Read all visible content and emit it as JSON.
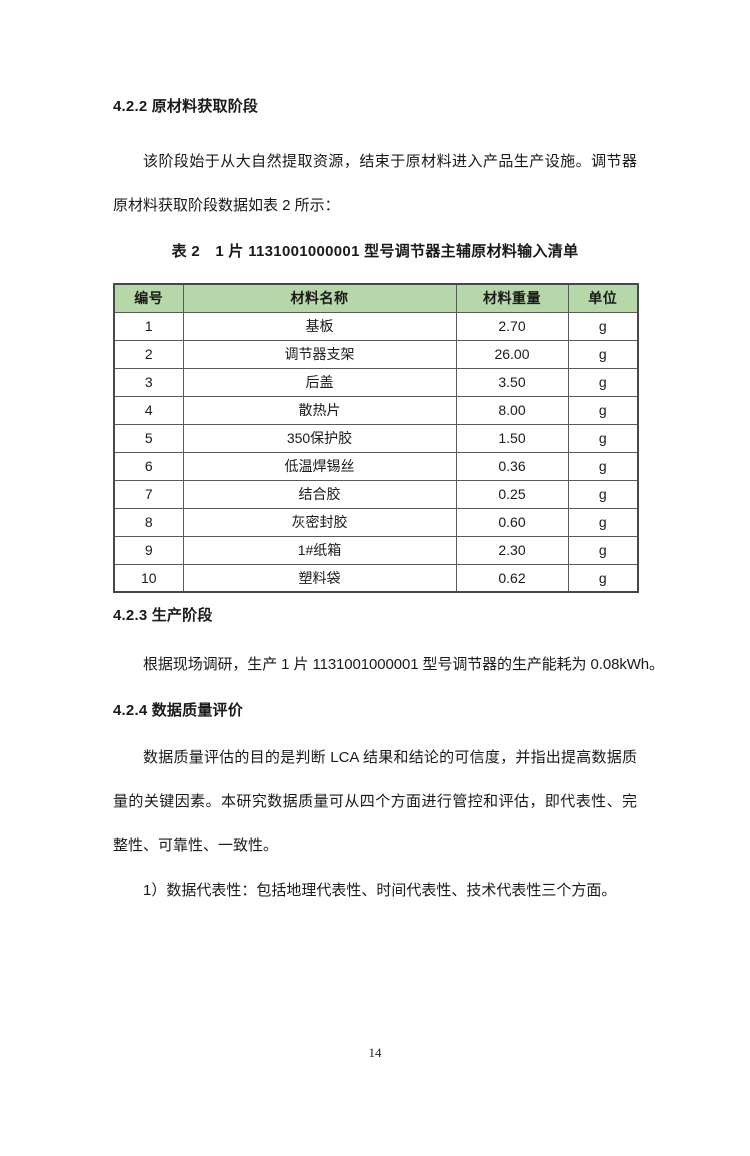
{
  "doc": {
    "section_422": {
      "heading": "4.2.2 原材料获取阶段",
      "paragraph": "该阶段始于从大自然提取资源，结束于原材料进入产品生产设施。调节器原材料获取阶段数据如表 2 所示："
    },
    "table_caption": "表 2　1 片 1131001000001 型号调节器主辅原材料输入清单",
    "materials_table": {
      "headers": [
        "编号",
        "材料名称",
        "材料重量",
        "单位"
      ],
      "rows": [
        [
          "1",
          "基板",
          "2.70",
          "g"
        ],
        [
          "2",
          "调节器支架",
          "26.00",
          "g"
        ],
        [
          "3",
          "后盖",
          "3.50",
          "g"
        ],
        [
          "4",
          "散热片",
          "8.00",
          "g"
        ],
        [
          "5",
          "350保护胶",
          "1.50",
          "g"
        ],
        [
          "6",
          "低温焊锡丝",
          "0.36",
          "g"
        ],
        [
          "7",
          "结合胶",
          "0.25",
          "g"
        ],
        [
          "8",
          "灰密封胶",
          "0.60",
          "g"
        ],
        [
          "9",
          "1#纸箱",
          "2.30",
          "g"
        ],
        [
          "10",
          "塑料袋",
          "0.62",
          "g"
        ]
      ]
    },
    "section_423": {
      "heading": "4.2.3 生产阶段",
      "paragraph": "根据现场调研，生产 1 片 1131001000001 型号调节器的生产能耗为 0.08kWh。"
    },
    "section_424": {
      "heading": "4.2.4 数据质量评价",
      "paragraph": "数据质量评估的目的是判断 LCA 结果和结论的可信度，并指出提高数据质量的关键因素。本研究数据质量可从四个方面进行管控和评估，即代表性、完整性、可靠性、一致性。",
      "list_item_1": "1）数据代表性：包括地理代表性、时间代表性、技术代表性三个方面。"
    },
    "page_number": "14"
  },
  "colors": {
    "table_header_bg": "#b6d7a8",
    "table_border_outer": "#474747",
    "table_border_inner": "#5a5a5a",
    "text": "#1a1a1a"
  }
}
